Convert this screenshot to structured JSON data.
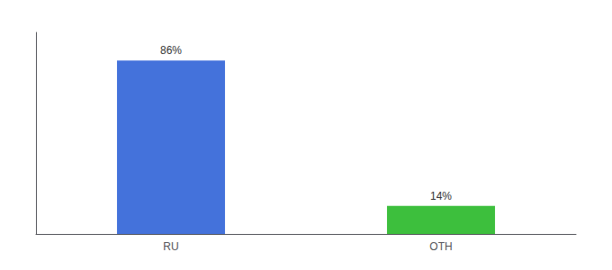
{
  "chart_data": {
    "type": "bar",
    "categories": [
      "RU",
      "OTH"
    ],
    "values": [
      86,
      14
    ],
    "value_labels": [
      "86%",
      "14%"
    ],
    "colors": [
      "#4472db",
      "#3dbf3d"
    ],
    "ylim": [
      0,
      100
    ],
    "grid": false,
    "data_labels": true,
    "tick_labels": "x"
  }
}
